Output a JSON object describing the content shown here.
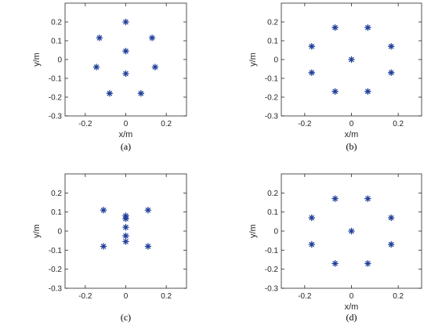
{
  "chart_data": [
    {
      "type": "scatter",
      "caption": "(a)",
      "xlabel": "x/m",
      "ylabel": "y/m",
      "xlim": [
        -0.3,
        0.3
      ],
      "ylim": [
        -0.3,
        0.3
      ],
      "xticks": [
        "-0.2",
        "0",
        "0.2"
      ],
      "yticks": [
        "-0.3",
        "-0.2",
        "-0.1",
        "0",
        "0.1",
        "0.2"
      ],
      "marker": "asterisk",
      "marker_color": "#1f3f99",
      "points": [
        {
          "x": 0.0,
          "y": 0.2
        },
        {
          "x": -0.13,
          "y": 0.115
        },
        {
          "x": 0.13,
          "y": 0.115
        },
        {
          "x": 0.0,
          "y": 0.045
        },
        {
          "x": -0.145,
          "y": -0.04
        },
        {
          "x": 0.145,
          "y": -0.04
        },
        {
          "x": 0.0,
          "y": -0.075
        },
        {
          "x": -0.08,
          "y": -0.18
        },
        {
          "x": 0.075,
          "y": -0.18
        }
      ]
    },
    {
      "type": "scatter",
      "caption": "(b)",
      "xlabel": "x/m",
      "ylabel": "y/m",
      "xlim": [
        -0.3,
        0.3
      ],
      "ylim": [
        -0.3,
        0.3
      ],
      "xticks": [
        "-0.2",
        "0",
        "0.2"
      ],
      "yticks": [
        "-0.3",
        "-0.2",
        "-0.1",
        "0",
        "0.1",
        "0.2"
      ],
      "marker": "asterisk",
      "marker_color": "#1f3f99",
      "points": [
        {
          "x": -0.07,
          "y": 0.17
        },
        {
          "x": 0.07,
          "y": 0.17
        },
        {
          "x": -0.17,
          "y": 0.07
        },
        {
          "x": 0.17,
          "y": 0.07
        },
        {
          "x": 0.0,
          "y": 0.0
        },
        {
          "x": -0.17,
          "y": -0.07
        },
        {
          "x": 0.17,
          "y": -0.07
        },
        {
          "x": -0.07,
          "y": -0.17
        },
        {
          "x": 0.07,
          "y": -0.17
        }
      ]
    },
    {
      "type": "scatter",
      "caption": "(c)",
      "xlabel": "",
      "ylabel": "y/m",
      "xlim": [
        -0.3,
        0.3
      ],
      "ylim": [
        -0.3,
        0.3
      ],
      "xticks": [
        "-0.2",
        "0",
        "0.2"
      ],
      "yticks": [
        "-0.3",
        "-0.2",
        "-0.1",
        "0",
        "0.1",
        "0.2"
      ],
      "marker": "asterisk",
      "marker_color": "#1f3f99",
      "points": [
        {
          "x": -0.11,
          "y": 0.11
        },
        {
          "x": 0.11,
          "y": 0.11
        },
        {
          "x": 0.0,
          "y": 0.08
        },
        {
          "x": 0.0,
          "y": 0.065
        },
        {
          "x": 0.0,
          "y": 0.02
        },
        {
          "x": 0.0,
          "y": -0.025
        },
        {
          "x": 0.0,
          "y": -0.055
        },
        {
          "x": -0.11,
          "y": -0.08
        },
        {
          "x": 0.11,
          "y": -0.08
        }
      ]
    },
    {
      "type": "scatter",
      "caption": "(d)",
      "xlabel": "x/m",
      "ylabel": "y/m",
      "xlim": [
        -0.3,
        0.3
      ],
      "ylim": [
        -0.3,
        0.3
      ],
      "xticks": [
        "-0.2",
        "0",
        "0.2"
      ],
      "yticks": [
        "-0.3",
        "-0.2",
        "-0.1",
        "0",
        "0.1",
        "0.2"
      ],
      "marker": "asterisk",
      "marker_color": "#1f3f99",
      "points": [
        {
          "x": -0.07,
          "y": 0.17
        },
        {
          "x": 0.07,
          "y": 0.17
        },
        {
          "x": -0.17,
          "y": 0.07
        },
        {
          "x": 0.17,
          "y": 0.07
        },
        {
          "x": 0.0,
          "y": 0.0
        },
        {
          "x": -0.17,
          "y": -0.07
        },
        {
          "x": 0.17,
          "y": -0.07
        },
        {
          "x": -0.07,
          "y": -0.17
        },
        {
          "x": 0.07,
          "y": -0.17
        }
      ]
    }
  ]
}
